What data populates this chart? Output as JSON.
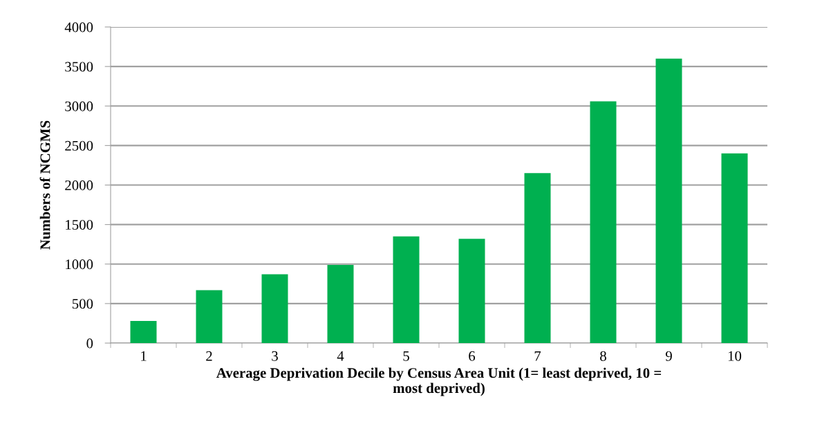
{
  "chart_data": {
    "type": "bar",
    "xlabel": "Average Deprivation Decile by Census Area Unit (1= least deprived, 10 =\nmost deprived)",
    "ylabel": "Numbers of NCGMS",
    "categories": [
      "1",
      "2",
      "3",
      "4",
      "5",
      "6",
      "7",
      "8",
      "9",
      "10"
    ],
    "values": [
      280,
      670,
      870,
      990,
      1350,
      1320,
      2150,
      3060,
      3600,
      2400
    ],
    "color": "#00b050",
    "ylim": [
      0,
      4000
    ],
    "yticks": [
      0,
      500,
      1000,
      1500,
      2000,
      2500,
      3000,
      3500,
      4000
    ],
    "grid": "y",
    "legend": false
  }
}
